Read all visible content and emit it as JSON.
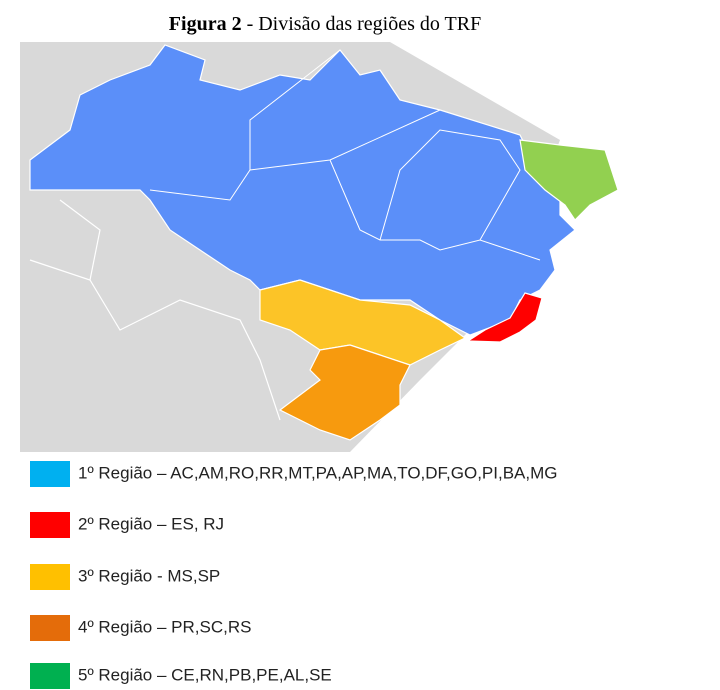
{
  "caption": {
    "label": "Figura 2",
    "text": "- Divisão das regiões do TRF"
  },
  "legend": [
    {
      "text": "1º Região – AC,AM,RO,RR,MT,PA,AP,MA,TO,DF,GO,PI,BA,MG",
      "color": "#00b0f0"
    },
    {
      "text": "2º Região – ES, RJ",
      "color": "#ff0000"
    },
    {
      "text": "3º Região - MS,SP",
      "color": "#ffc000"
    },
    {
      "text": "4º Região – PR,SC,RS",
      "color": "#e46c0a"
    },
    {
      "text": "5º Região – CE,RN,PB,PE,AL,SE",
      "color": "#00b050"
    }
  ]
}
